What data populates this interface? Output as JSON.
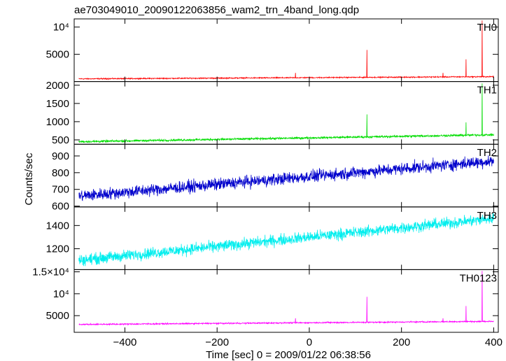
{
  "figure": {
    "title": "ae703049010_20090122063856_wam2_trn_4band_long.qdp",
    "xlabel": "Time [sec] 0 = 2009/01/22 06:38:56",
    "ylabel": "Counts/sec"
  },
  "chart_data": {
    "type": "line",
    "title": "ae703049010_20090122063856_wam2_trn_4band_long.qdp",
    "xlabel": "Time [sec] 0 = 2009/01/22 06:38:56",
    "ylabel": "Counts/sec",
    "xlim": [
      -510,
      410
    ],
    "x_ticks": [
      -400,
      -200,
      0,
      200,
      400
    ],
    "x_tick_labels": [
      "−400",
      "−200",
      "0",
      "200",
      "400"
    ],
    "grid": false,
    "panels": [
      {
        "name": "TH0",
        "color": "#ff0000",
        "ylim": [
          0,
          11500
        ],
        "yticks": [
          5000,
          10000
        ],
        "ytick_labels": [
          "5000",
          "10⁴"
        ],
        "baseline": [
          [
            -500,
            500
          ],
          [
            400,
            900
          ]
        ],
        "noise": 60,
        "spikes": [
          [
            -30,
            1600
          ],
          [
            125,
            5800
          ],
          [
            290,
            1600
          ],
          [
            340,
            4100
          ],
          [
            375,
            11200
          ]
        ]
      },
      {
        "name": "TH1",
        "color": "#00dd00",
        "ylim": [
          380,
          2100
        ],
        "yticks": [
          500,
          1000,
          1500,
          2000
        ],
        "ytick_labels": [
          "500",
          "1000",
          "1500",
          "2000"
        ],
        "baseline": [
          [
            -500,
            450
          ],
          [
            400,
            640
          ]
        ],
        "noise": 18,
        "spikes": [
          [
            125,
            1200
          ],
          [
            340,
            980
          ],
          [
            375,
            2050
          ]
        ]
      },
      {
        "name": "TH2",
        "color": "#0000cc",
        "ylim": [
          595,
          970
        ],
        "yticks": [
          600,
          700,
          800,
          900
        ],
        "ytick_labels": [
          "600",
          "700",
          "800",
          "900"
        ],
        "baseline": [
          [
            -500,
            660
          ],
          [
            400,
            870
          ]
        ],
        "noise": 22,
        "spikes": []
      },
      {
        "name": "TH3",
        "color": "#00eeee",
        "ylim": [
          1020,
          1560
        ],
        "yticks": [
          1200,
          1400
        ],
        "ytick_labels": [
          "1200",
          "1400"
        ],
        "baseline": [
          [
            -500,
            1100
          ],
          [
            400,
            1460
          ]
        ],
        "noise": 30,
        "spikes": []
      },
      {
        "name": "TH0123",
        "color": "#ff00ff",
        "ylim": [
          1200,
          15500
        ],
        "yticks": [
          5000,
          10000,
          15000
        ],
        "ytick_labels": [
          "5000",
          "10⁴",
          "1.5×10⁴"
        ],
        "baseline": [
          [
            -500,
            3000
          ],
          [
            400,
            3700
          ]
        ],
        "noise": 90,
        "spikes": [
          [
            -30,
            4400
          ],
          [
            125,
            9300
          ],
          [
            290,
            4400
          ],
          [
            340,
            7200
          ],
          [
            375,
            15200
          ]
        ]
      }
    ]
  }
}
